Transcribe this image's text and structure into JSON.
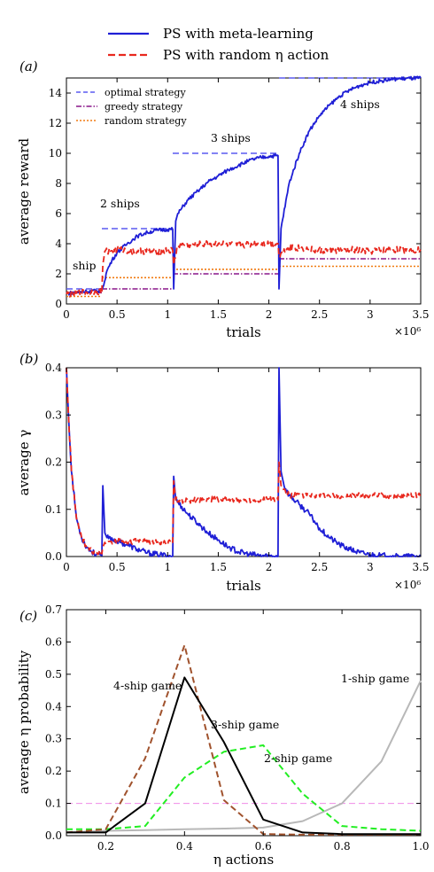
{
  "figure": {
    "legend": [
      {
        "label": "PS with meta-learning",
        "color": "#1f1fd6",
        "dash": "solid"
      },
      {
        "label": "PS with random η action",
        "color": "#e8281e",
        "dash": "dashed"
      }
    ]
  },
  "chart_data": [
    {
      "panel": "(a)",
      "type": "line",
      "xlabel": "trials",
      "ylabel": "average reward",
      "x_multiplier": "×10⁶",
      "xlim": [
        0,
        3.5
      ],
      "ylim": [
        0,
        15
      ],
      "xticks": [
        0,
        0.5,
        1,
        1.5,
        2,
        2.5,
        3,
        3.5
      ],
      "xtick_labels": [
        "0",
        "0.5",
        "1",
        "1.5",
        "2",
        "2.5",
        "3",
        "3.5"
      ],
      "yticks": [
        0,
        2,
        4,
        6,
        8,
        10,
        12,
        14
      ],
      "ytick_labels": [
        "0",
        "2",
        "4",
        "6",
        "8",
        "10",
        "12",
        "14"
      ],
      "phases": [
        {
          "name": "ship",
          "x_start": 0,
          "x_end": 0.35
        },
        {
          "name": "2 ships",
          "x_start": 0.35,
          "x_end": 1.05
        },
        {
          "name": "3 ships",
          "x_start": 1.05,
          "x_end": 2.1
        },
        {
          "name": "4 ships",
          "x_start": 2.1,
          "x_end": 3.5
        }
      ],
      "series": [
        {
          "name": "optimal strategy",
          "color": "#5a5af0",
          "dash": "dashed",
          "segments": [
            [
              0,
              0.35,
              1
            ],
            [
              0.35,
              1.05,
              5
            ],
            [
              1.05,
              2.1,
              10
            ],
            [
              2.1,
              3.5,
              15
            ]
          ]
        },
        {
          "name": "greedy strategy",
          "color": "#8a168a",
          "dash": "dashdot",
          "segments": [
            [
              0,
              0.35,
              0.75
            ],
            [
              0.35,
              1.05,
              1.0
            ],
            [
              1.05,
              2.1,
              2.0
            ],
            [
              2.1,
              3.5,
              3.0
            ]
          ]
        },
        {
          "name": "random strategy",
          "color": "#f07a10",
          "dash": "dotted",
          "segments": [
            [
              0,
              0.35,
              0.5
            ],
            [
              0.35,
              1.05,
              1.75
            ],
            [
              1.05,
              2.1,
              2.3
            ],
            [
              2.1,
              3.5,
              2.5
            ]
          ]
        },
        {
          "name": "PS with meta-learning",
          "color": "#1f1fd6",
          "dash": "solid",
          "points": [
            [
              0,
              0.7
            ],
            [
              0.1,
              0.78
            ],
            [
              0.2,
              0.83
            ],
            [
              0.3,
              0.87
            ],
            [
              0.35,
              0.9
            ],
            [
              0.36,
              1.1
            ],
            [
              0.4,
              2.2
            ],
            [
              0.45,
              2.9
            ],
            [
              0.5,
              3.4
            ],
            [
              0.6,
              4.0
            ],
            [
              0.7,
              4.5
            ],
            [
              0.8,
              4.75
            ],
            [
              0.9,
              4.9
            ],
            [
              1.0,
              4.95
            ],
            [
              1.05,
              4.95
            ],
            [
              1.06,
              1.0
            ],
            [
              1.08,
              5.5
            ],
            [
              1.1,
              6.0
            ],
            [
              1.2,
              6.9
            ],
            [
              1.3,
              7.5
            ],
            [
              1.4,
              8.1
            ],
            [
              1.5,
              8.5
            ],
            [
              1.6,
              8.9
            ],
            [
              1.7,
              9.2
            ],
            [
              1.8,
              9.5
            ],
            [
              1.9,
              9.7
            ],
            [
              2.0,
              9.8
            ],
            [
              2.09,
              9.85
            ],
            [
              2.1,
              1.0
            ],
            [
              2.12,
              5.0
            ],
            [
              2.2,
              8.0
            ],
            [
              2.3,
              10.0
            ],
            [
              2.4,
              11.5
            ],
            [
              2.5,
              12.5
            ],
            [
              2.6,
              13.2
            ],
            [
              2.7,
              13.8
            ],
            [
              2.8,
              14.2
            ],
            [
              2.9,
              14.5
            ],
            [
              3.0,
              14.7
            ],
            [
              3.1,
              14.8
            ],
            [
              3.2,
              14.9
            ],
            [
              3.3,
              14.95
            ],
            [
              3.5,
              15.0
            ]
          ]
        },
        {
          "name": "PS with random η action",
          "color": "#e8281e",
          "dash": "dashed",
          "points": [
            [
              0,
              0.65
            ],
            [
              0.1,
              0.72
            ],
            [
              0.2,
              0.78
            ],
            [
              0.3,
              0.82
            ],
            [
              0.35,
              0.85
            ],
            [
              0.36,
              2.6
            ],
            [
              0.38,
              3.5
            ],
            [
              0.5,
              3.6
            ],
            [
              0.7,
              3.5
            ],
            [
              0.9,
              3.5
            ],
            [
              1.05,
              3.55
            ],
            [
              1.06,
              2.6
            ],
            [
              1.1,
              3.9
            ],
            [
              1.3,
              3.95
            ],
            [
              1.5,
              4.0
            ],
            [
              1.7,
              3.9
            ],
            [
              1.9,
              4.0
            ],
            [
              2.09,
              4.0
            ],
            [
              2.1,
              3.2
            ],
            [
              2.2,
              3.8
            ],
            [
              2.4,
              3.6
            ],
            [
              2.6,
              3.5
            ],
            [
              2.8,
              3.6
            ],
            [
              3.0,
              3.5
            ],
            [
              3.2,
              3.6
            ],
            [
              3.5,
              3.6
            ]
          ]
        }
      ]
    },
    {
      "panel": "(b)",
      "type": "line",
      "xlabel": "trials",
      "ylabel": "average γ",
      "x_multiplier": "×10⁶",
      "xlim": [
        0,
        3.5
      ],
      "ylim": [
        0,
        0.4
      ],
      "xticks": [
        0,
        0.5,
        1,
        1.5,
        2,
        2.5,
        3,
        3.5
      ],
      "xtick_labels": [
        "0",
        "0.5",
        "1",
        "1.5",
        "2",
        "2.5",
        "3",
        "3.5"
      ],
      "yticks": [
        0,
        0.1,
        0.2,
        0.3,
        0.4
      ],
      "ytick_labels": [
        "0.0",
        "0.1",
        "0.2",
        "0.3",
        "0.4"
      ],
      "series": [
        {
          "name": "PS with meta-learning",
          "color": "#1f1fd6",
          "dash": "solid",
          "points": [
            [
              0,
              0.4
            ],
            [
              0.02,
              0.3
            ],
            [
              0.05,
              0.18
            ],
            [
              0.1,
              0.08
            ],
            [
              0.15,
              0.04
            ],
            [
              0.2,
              0.02
            ],
            [
              0.25,
              0.01
            ],
            [
              0.3,
              0.005
            ],
            [
              0.34,
              0.003
            ],
            [
              0.35,
              0.002
            ],
            [
              0.36,
              0.15
            ],
            [
              0.38,
              0.05
            ],
            [
              0.4,
              0.04
            ],
            [
              0.5,
              0.033
            ],
            [
              0.6,
              0.025
            ],
            [
              0.7,
              0.015
            ],
            [
              0.8,
              0.008
            ],
            [
              0.9,
              0.004
            ],
            [
              1.0,
              0.002
            ],
            [
              1.05,
              0.001
            ],
            [
              1.06,
              0.17
            ],
            [
              1.08,
              0.12
            ],
            [
              1.2,
              0.09
            ],
            [
              1.3,
              0.07
            ],
            [
              1.4,
              0.05
            ],
            [
              1.5,
              0.035
            ],
            [
              1.6,
              0.02
            ],
            [
              1.7,
              0.01
            ],
            [
              1.8,
              0.005
            ],
            [
              1.9,
              0.002
            ],
            [
              2.0,
              0.001
            ],
            [
              2.09,
              0.0
            ],
            [
              2.1,
              0.4
            ],
            [
              2.12,
              0.18
            ],
            [
              2.15,
              0.15
            ],
            [
              2.2,
              0.13
            ],
            [
              2.3,
              0.11
            ],
            [
              2.4,
              0.09
            ],
            [
              2.5,
              0.06
            ],
            [
              2.6,
              0.04
            ],
            [
              2.7,
              0.025
            ],
            [
              2.8,
              0.015
            ],
            [
              2.9,
              0.008
            ],
            [
              3.0,
              0.004
            ],
            [
              3.1,
              0.002
            ],
            [
              3.2,
              0.001
            ],
            [
              3.3,
              0.0
            ],
            [
              3.5,
              0.0
            ]
          ]
        },
        {
          "name": "PS with random η action",
          "color": "#e8281e",
          "dash": "dashed",
          "points": [
            [
              0,
              0.4
            ],
            [
              0.02,
              0.3
            ],
            [
              0.05,
              0.18
            ],
            [
              0.1,
              0.08
            ],
            [
              0.15,
              0.04
            ],
            [
              0.2,
              0.02
            ],
            [
              0.25,
              0.012
            ],
            [
              0.3,
              0.008
            ],
            [
              0.35,
              0.006
            ],
            [
              0.36,
              0.02
            ],
            [
              0.38,
              0.03
            ],
            [
              0.5,
              0.033
            ],
            [
              0.7,
              0.032
            ],
            [
              0.9,
              0.03
            ],
            [
              1.05,
              0.03
            ],
            [
              1.06,
              0.16
            ],
            [
              1.08,
              0.12
            ],
            [
              1.2,
              0.118
            ],
            [
              1.4,
              0.122
            ],
            [
              1.6,
              0.12
            ],
            [
              1.8,
              0.12
            ],
            [
              2.0,
              0.122
            ],
            [
              2.09,
              0.12
            ],
            [
              2.1,
              0.2
            ],
            [
              2.12,
              0.15
            ],
            [
              2.2,
              0.13
            ],
            [
              2.4,
              0.13
            ],
            [
              2.6,
              0.128
            ],
            [
              2.8,
              0.128
            ],
            [
              3.0,
              0.13
            ],
            [
              3.2,
              0.128
            ],
            [
              3.5,
              0.13
            ]
          ]
        }
      ]
    },
    {
      "panel": "(c)",
      "type": "line",
      "xlabel": "η actions",
      "ylabel": "average η probability",
      "xlim": [
        0.1,
        1.0
      ],
      "ylim": [
        0,
        0.7
      ],
      "xticks": [
        0.2,
        0.4,
        0.6,
        0.8,
        1.0
      ],
      "xtick_labels": [
        "0.2",
        "0.4",
        "0.6",
        "0.8",
        "1.0"
      ],
      "yticks": [
        0,
        0.1,
        0.2,
        0.3,
        0.4,
        0.5,
        0.6,
        0.7
      ],
      "ytick_labels": [
        "0.0",
        "0.1",
        "0.2",
        "0.3",
        "0.4",
        "0.5",
        "0.6",
        "0.7"
      ],
      "x": [
        0.1,
        0.2,
        0.3,
        0.4,
        0.5,
        0.6,
        0.7,
        0.8,
        0.9,
        1.0
      ],
      "series": [
        {
          "name": "4-ship game",
          "color": "#a0522d",
          "dash": "dashed",
          "values": [
            0.01,
            0.02,
            0.24,
            0.59,
            0.11,
            0.005,
            0.003,
            0.003,
            0.003,
            0.003
          ]
        },
        {
          "name": "3-ship game",
          "color": "#000000",
          "dash": "solid",
          "values": [
            0.01,
            0.01,
            0.1,
            0.49,
            0.29,
            0.05,
            0.01,
            0.005,
            0.005,
            0.005
          ]
        },
        {
          "name": "2-ship game",
          "color": "#22ee22",
          "dash": "dashed",
          "values": [
            0.02,
            0.02,
            0.03,
            0.18,
            0.26,
            0.28,
            0.13,
            0.03,
            0.02,
            0.015
          ]
        },
        {
          "name": "1-ship game",
          "color": "#b8b8b8",
          "dash": "solid",
          "values": [
            0.01,
            0.015,
            0.017,
            0.02,
            0.022,
            0.025,
            0.045,
            0.1,
            0.23,
            0.48
          ]
        },
        {
          "name": "",
          "color": "#f08ce8",
          "dash": "dashed",
          "values": [
            0.1,
            0.1,
            0.1,
            0.1,
            0.1,
            0.1,
            0.1,
            0.1,
            0.1,
            0.1
          ]
        }
      ]
    }
  ]
}
